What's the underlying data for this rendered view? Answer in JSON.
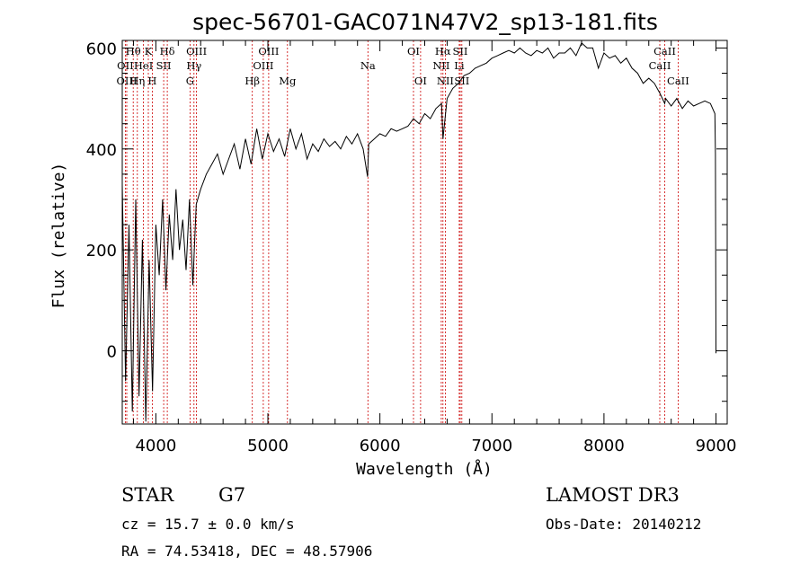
{
  "chart_data": {
    "type": "line",
    "title": "spec-56701-GAC071N47V2_sp13-181.fits",
    "xlabel": "Wavelength (Å)",
    "ylabel": "Flux (relative)",
    "xlim": [
      3700,
      9100
    ],
    "ylim": [
      -145,
      615
    ],
    "x_ticks": [
      4000,
      5000,
      6000,
      7000,
      8000,
      9000
    ],
    "x_tick_labels": [
      "4000",
      "5000",
      "6000",
      "7000",
      "8000",
      "9000"
    ],
    "y_ticks": [
      0,
      200,
      400,
      600
    ],
    "y_tick_labels": [
      "0",
      "200",
      "400",
      "600"
    ],
    "grid": false,
    "series": [
      {
        "name": "Flux",
        "color": "#000000",
        "x": [
          3700,
          3730,
          3760,
          3790,
          3820,
          3850,
          3880,
          3910,
          3940,
          3970,
          4000,
          4030,
          4060,
          4090,
          4120,
          4150,
          4180,
          4210,
          4240,
          4270,
          4300,
          4330,
          4360,
          4400,
          4450,
          4500,
          4550,
          4600,
          4650,
          4700,
          4750,
          4800,
          4850,
          4900,
          4950,
          5000,
          5050,
          5100,
          5150,
          5200,
          5250,
          5300,
          5350,
          5400,
          5450,
          5500,
          5550,
          5600,
          5650,
          5700,
          5750,
          5800,
          5850,
          5890,
          5900,
          5950,
          6000,
          6050,
          6100,
          6150,
          6200,
          6250,
          6300,
          6350,
          6400,
          6450,
          6500,
          6550,
          6563,
          6600,
          6650,
          6700,
          6750,
          6800,
          6850,
          6900,
          6950,
          7000,
          7050,
          7100,
          7150,
          7200,
          7250,
          7300,
          7350,
          7400,
          7450,
          7500,
          7550,
          7600,
          7650,
          7700,
          7750,
          7800,
          7850,
          7900,
          7950,
          8000,
          8050,
          8100,
          8150,
          8200,
          8250,
          8300,
          8350,
          8400,
          8450,
          8500,
          8542,
          8550,
          8600,
          8650,
          8700,
          8750,
          8800,
          8850,
          8900,
          8950,
          8990,
          8995,
          9000
        ],
        "values": [
          330,
          -60,
          250,
          -120,
          300,
          -90,
          220,
          -140,
          180,
          -80,
          250,
          150,
          300,
          120,
          270,
          180,
          320,
          200,
          260,
          160,
          300,
          130,
          290,
          320,
          350,
          370,
          390,
          350,
          380,
          410,
          360,
          420,
          370,
          440,
          380,
          430,
          395,
          420,
          385,
          440,
          400,
          430,
          380,
          410,
          395,
          420,
          405,
          415,
          400,
          425,
          410,
          430,
          400,
          345,
          410,
          420,
          430,
          425,
          440,
          435,
          440,
          445,
          460,
          450,
          470,
          460,
          480,
          490,
          420,
          500,
          520,
          530,
          545,
          550,
          560,
          565,
          570,
          580,
          585,
          590,
          595,
          590,
          600,
          590,
          585,
          595,
          590,
          600,
          580,
          590,
          590,
          600,
          585,
          610,
          600,
          600,
          560,
          590,
          580,
          585,
          570,
          580,
          560,
          550,
          530,
          540,
          530,
          510,
          490,
          500,
          485,
          500,
          480,
          495,
          485,
          490,
          495,
          490,
          470,
          390,
          -5
        ]
      }
    ],
    "spectral_lines": [
      {
        "label": "Hθ",
        "x": 3798,
        "row": 1
      },
      {
        "label": "OII",
        "x": 3727,
        "row": 2
      },
      {
        "label": "OIII",
        "x": 3740,
        "row": 3
      },
      {
        "label": "K",
        "x": 3933,
        "row": 1
      },
      {
        "label": "HeI",
        "x": 3889,
        "row": 2
      },
      {
        "label": "Hη",
        "x": 3835,
        "row": 3
      },
      {
        "label": "Hδ",
        "x": 4102,
        "row": 1
      },
      {
        "label": "SII",
        "x": 4070,
        "row": 2
      },
      {
        "label": "H",
        "x": 3968,
        "row": 3
      },
      {
        "label": "OIII",
        "x": 4363,
        "row": 1
      },
      {
        "label": "Hγ",
        "x": 4340,
        "row": 2
      },
      {
        "label": "G",
        "x": 4305,
        "row": 3
      },
      {
        "label": "OIII",
        "x": 5007,
        "row": 1
      },
      {
        "label": "OIII",
        "x": 4959,
        "row": 2
      },
      {
        "label": "Hβ",
        "x": 4861,
        "row": 3
      },
      {
        "label": "Mg",
        "x": 5175,
        "row": 3
      },
      {
        "label": "Na",
        "x": 5893,
        "row": 2
      },
      {
        "label": "OI",
        "x": 6300,
        "row": 1
      },
      {
        "label": "OI",
        "x": 6363,
        "row": 3
      },
      {
        "label": "Hα",
        "x": 6563,
        "row": 1
      },
      {
        "label": "NII",
        "x": 6548,
        "row": 2
      },
      {
        "label": "NII",
        "x": 6584,
        "row": 3
      },
      {
        "label": "SII",
        "x": 6717,
        "row": 1
      },
      {
        "label": "Li",
        "x": 6708,
        "row": 2
      },
      {
        "label": "SII",
        "x": 6731,
        "row": 3
      },
      {
        "label": "CaII",
        "x": 8542,
        "row": 1
      },
      {
        "label": "CaII",
        "x": 8498,
        "row": 2
      },
      {
        "label": "CaII",
        "x": 8662,
        "row": 3
      }
    ]
  },
  "info": {
    "object_class": "STAR",
    "subclass": "G7",
    "survey": "LAMOST DR3",
    "redshift": "cz = 15.7 ± 0.0 km/s",
    "obs_date": "Obs-Date: 20140212",
    "coordinates": "RA =  74.53418, DEC =  48.57906"
  }
}
